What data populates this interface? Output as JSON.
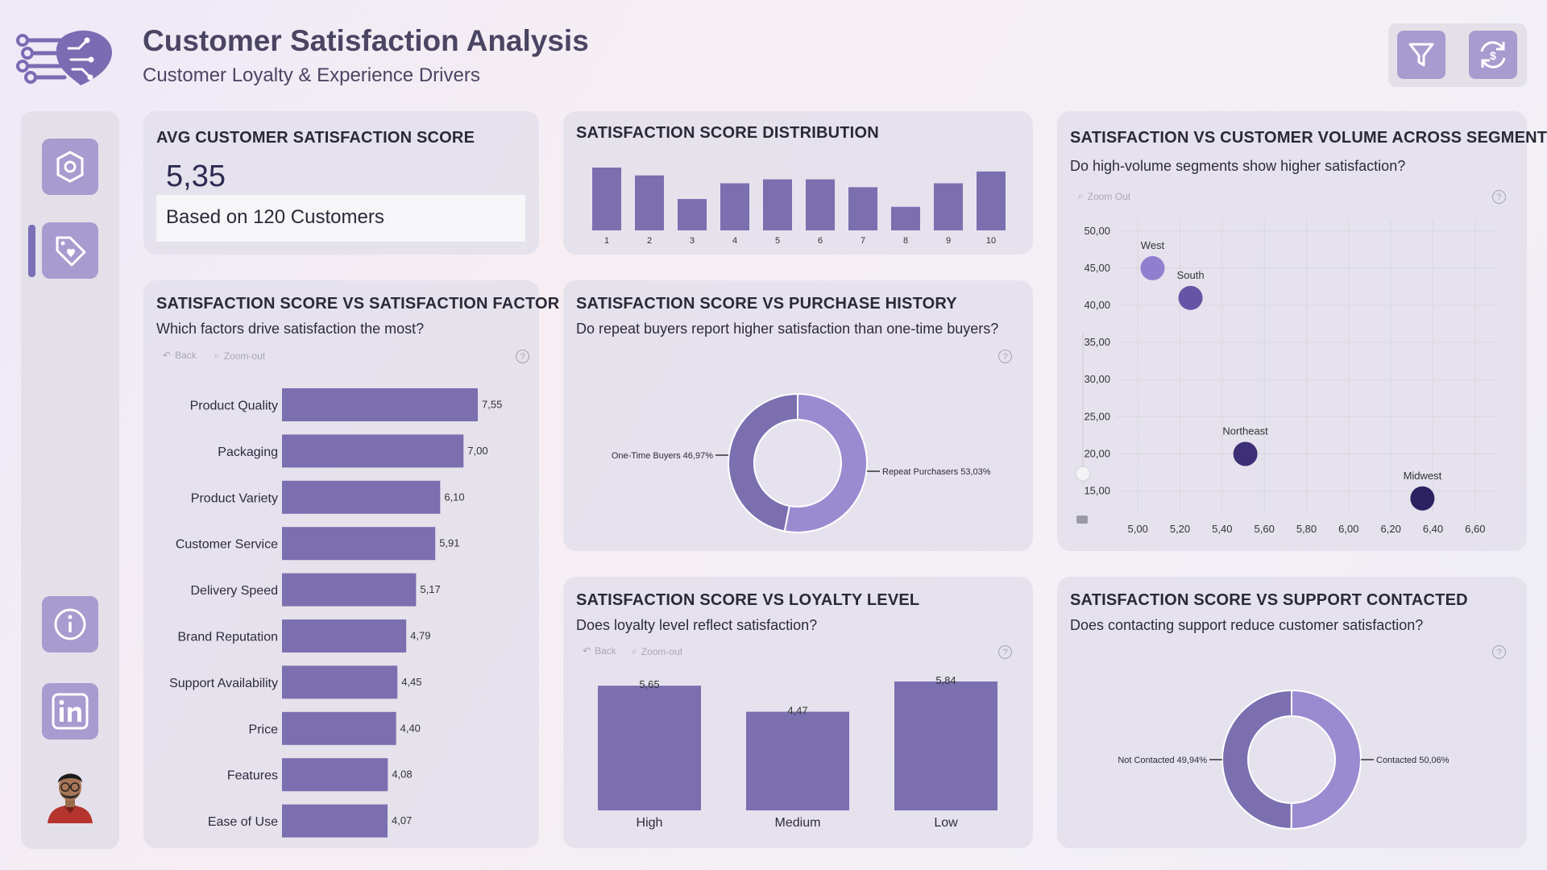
{
  "header": {
    "title": "Customer Satisfaction Analysis",
    "subtitle": "Customer Loyalty & Experience Drivers",
    "filter_icon": "filter-icon",
    "reset_icon": "refresh-icon"
  },
  "sidebar": {
    "items": [
      {
        "icon": "settings-gear-icon"
      },
      {
        "icon": "tag-heart-icon",
        "selected": true
      },
      {
        "icon": "info-icon"
      },
      {
        "icon": "linkedin-icon"
      }
    ],
    "avatar_icon": "avatar"
  },
  "colors": {
    "bar": "#7b6fb0",
    "accent": "#a89bcf",
    "dark_point": "#3c2f75",
    "donut_light": "#9a8bd1",
    "donut_dark": "#7b6fb0"
  },
  "avg_card": {
    "title": "AVG CUSTOMER SATISFACTION SCORE",
    "value": "5,35",
    "note": "Based on 120 Customers"
  },
  "dist_card": {
    "title": "SATISFACTION SCORE DISTRIBUTION",
    "chart_data": {
      "type": "bar",
      "categories": [
        "1",
        "2",
        "3",
        "4",
        "5",
        "6",
        "7",
        "8",
        "9",
        "10"
      ],
      "values": [
        16,
        14,
        8,
        12,
        13,
        13,
        11,
        6,
        12,
        15
      ]
    }
  },
  "factor_card": {
    "title": "SATISFACTION SCORE VS SATISFACTION FACTOR",
    "question": "Which factors drive satisfaction the most?",
    "back_label": "Back",
    "zoom_label": "Zoom-out",
    "help": "?",
    "chart_data": {
      "type": "bar",
      "orientation": "horizontal",
      "categories": [
        "Product Quality",
        "Packaging",
        "Product Variety",
        "Customer Service",
        "Delivery Speed",
        "Brand Reputation",
        "Support Availability",
        "Price",
        "Features",
        "Ease of Use"
      ],
      "values": [
        7.55,
        7.0,
        6.1,
        5.91,
        5.17,
        4.79,
        4.45,
        4.4,
        4.08,
        4.07
      ],
      "labels": [
        "7,55",
        "7,00",
        "6,10",
        "5,91",
        "5,17",
        "4,79",
        "4,45",
        "4,40",
        "4,08",
        "4,07"
      ]
    }
  },
  "purchase_card": {
    "title": "SATISFACTION SCORE VS PURCHASE HISTORY",
    "question": "Do repeat buyers report higher satisfaction than one-time buyers?",
    "help": "?",
    "chart_data": {
      "type": "pie",
      "donut": true,
      "categories": [
        "Repeat Purchasers",
        "One-Time Buyers"
      ],
      "values": [
        53.03,
        46.97
      ],
      "labels": [
        "Repeat Purchasers 53,03%",
        "One-Time Buyers 46,97%"
      ]
    }
  },
  "segment_card": {
    "title": "SATISFACTION VS CUSTOMER VOLUME ACROSS SEGMENTS",
    "question": "Do high-volume segments show higher satisfaction?",
    "zoom_label": "Zoom Out",
    "help": "?",
    "chart_data": {
      "type": "scatter",
      "points": [
        {
          "name": "West",
          "x": 5.07,
          "y": 45.0,
          "color": "#8f7fcf"
        },
        {
          "name": "South",
          "x": 5.25,
          "y": 41.0,
          "color": "#6654a6"
        },
        {
          "name": "Northeast",
          "x": 5.51,
          "y": 20.0,
          "color": "#3c2f75"
        },
        {
          "name": "Midwest",
          "x": 6.35,
          "y": 14.0,
          "color": "#2c2262"
        }
      ],
      "xlim": [
        4.9,
        6.7
      ],
      "ylim": [
        13.0,
        51.5
      ],
      "xticks": [
        "5,00",
        "5,20",
        "5,40",
        "5,60",
        "5,80",
        "6,00",
        "6,20",
        "6,40",
        "6,60"
      ],
      "xtick_values": [
        5.0,
        5.2,
        5.4,
        5.6,
        5.8,
        6.0,
        6.2,
        6.4,
        6.6
      ],
      "yticks": [
        "50,00",
        "45,00",
        "40,00",
        "35,00",
        "30,00",
        "25,00",
        "20,00",
        "15,00"
      ],
      "ytick_values": [
        50,
        45,
        40,
        35,
        30,
        25,
        20,
        15
      ],
      "grid": true
    }
  },
  "loyalty_card": {
    "title": "SATISFACTION SCORE VS LOYALTY LEVEL",
    "question": "Does loyalty level reflect satisfaction?",
    "back_label": "Back",
    "zoom_label": "Zoom-out",
    "help": "?",
    "chart_data": {
      "type": "bar",
      "categories": [
        "High",
        "Medium",
        "Low"
      ],
      "values": [
        5.65,
        4.47,
        5.84
      ],
      "labels": [
        "5,65",
        "4,47",
        "5,84"
      ]
    }
  },
  "support_card": {
    "title": "SATISFACTION SCORE VS SUPPORT CONTACTED",
    "question": "Does contacting support reduce customer satisfaction?",
    "help": "?",
    "chart_data": {
      "type": "pie",
      "donut": true,
      "categories": [
        "Contacted",
        "Not Contacted"
      ],
      "values": [
        50.06,
        49.94
      ],
      "labels": [
        "Contacted 50,06%",
        "Not Contacted 49,94%"
      ]
    }
  }
}
